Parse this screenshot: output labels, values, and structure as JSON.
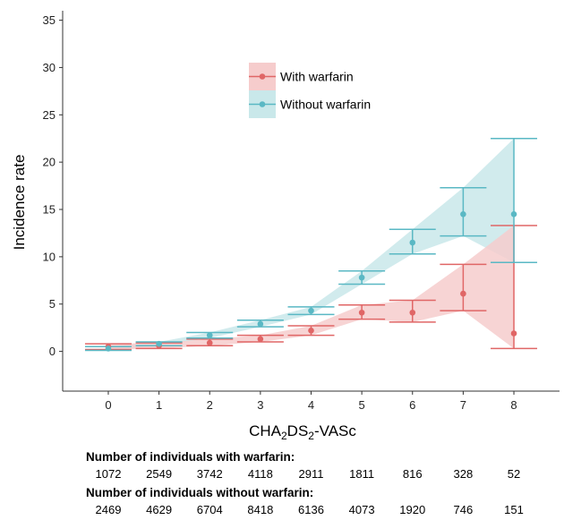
{
  "chart_data": {
    "type": "line",
    "xlabel": "CHA2DS2-VASc",
    "xlabel_parts": {
      "base": "CHA",
      "sub1": "2",
      "mid": "DS",
      "sub2": "2",
      "tail": "-VASc"
    },
    "ylabel": "Incidence rate",
    "x": [
      0,
      1,
      2,
      3,
      4,
      5,
      6,
      7,
      8
    ],
    "xticks": [
      "0",
      "1",
      "2",
      "3",
      "4",
      "5",
      "6",
      "7",
      "8"
    ],
    "xlim": [
      -0.9,
      8.9
    ],
    "ylim": [
      -4.2,
      36
    ],
    "yticks": [
      "0",
      "5",
      "10",
      "15",
      "20",
      "25",
      "30",
      "35"
    ],
    "grid": false,
    "legend_position": "top-center",
    "series": [
      {
        "name": "With warfarin",
        "color": "#e06666",
        "fill": "#f6cccc",
        "values": [
          0.5,
          0.6,
          0.9,
          1.3,
          2.2,
          4.1,
          4.1,
          6.1,
          1.9
        ],
        "lower": [
          0.2,
          0.3,
          0.6,
          1.0,
          1.7,
          3.4,
          3.1,
          4.3,
          0.3
        ],
        "upper": [
          0.8,
          0.9,
          1.3,
          1.7,
          2.7,
          4.9,
          5.4,
          9.2,
          13.3
        ]
      },
      {
        "name": "Without warfarin",
        "color": "#5ab8c4",
        "fill": "#c9e8ea",
        "values": [
          0.3,
          0.8,
          1.7,
          2.9,
          4.3,
          7.8,
          11.5,
          14.5,
          14.5
        ],
        "lower": [
          0.1,
          0.6,
          1.4,
          2.6,
          3.9,
          7.1,
          10.3,
          12.2,
          9.4
        ],
        "upper": [
          0.5,
          1.0,
          2.0,
          3.3,
          4.7,
          8.5,
          12.9,
          17.3,
          22.5
        ]
      }
    ]
  },
  "counts": {
    "with_title": "Number of individuals with warfarin:",
    "with_values": [
      "1072",
      "2549",
      "3742",
      "4118",
      "2911",
      "1811",
      "816",
      "328",
      "52"
    ],
    "without_title": "Number of individuals without warfarin:",
    "without_values": [
      "2469",
      "4629",
      "6704",
      "8418",
      "6136",
      "4073",
      "1920",
      "746",
      "151"
    ]
  }
}
